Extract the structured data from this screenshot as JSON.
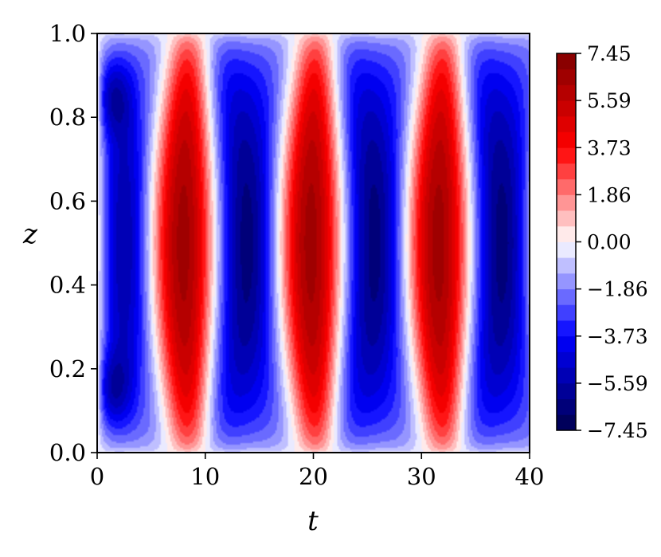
{
  "chart_data": {
    "type": "heatmap",
    "xlabel": "t",
    "ylabel": "z",
    "xlim": [
      0,
      40
    ],
    "ylim": [
      0.0,
      1.0
    ],
    "xticks": [
      "0",
      "10",
      "20",
      "30",
      "40"
    ],
    "yticks": [
      "0.0",
      "0.2",
      "0.4",
      "0.6",
      "0.8",
      "1.0"
    ],
    "colorbar": {
      "min": -7.45,
      "max": 7.45,
      "levels": 24,
      "colormap": "seismic",
      "ticks": [
        "7.45",
        "5.59",
        "3.73",
        "1.86",
        "0.00",
        "−1.86",
        "−3.73",
        "−5.59",
        "−7.45"
      ]
    },
    "field_description_values": {
      "amplitude": 6.5,
      "period": 11.8,
      "band_centers_t": [
        7.5,
        13.2,
        18.8,
        24.8,
        30.5,
        36.2
      ],
      "band_signs": [
        "positive",
        "negative",
        "positive",
        "negative",
        "positive",
        "negative"
      ]
    }
  },
  "colors": {
    "negative_max": "#00004c",
    "negative_mid": "#0000ff",
    "zero": "#ffffff",
    "positive_mid": "#ff0000",
    "positive_max": "#800000"
  }
}
